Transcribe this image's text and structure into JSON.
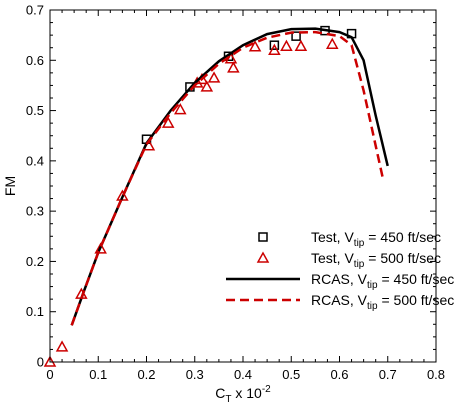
{
  "chart_data": {
    "type": "scatter",
    "title": "",
    "xlabel": "C",
    "xlabel_sub": "T",
    "xlabel_rest": " x 10",
    "xlabel_sup": "-2",
    "ylabel": "FM",
    "xlim": [
      0,
      0.8
    ],
    "ylim": [
      0,
      0.7
    ],
    "x_ticks": [
      "0",
      "0.1",
      "0.2",
      "0.3",
      "0.4",
      "0.5",
      "0.6",
      "0.7",
      "0.8"
    ],
    "y_ticks": [
      "0",
      "0.1",
      "0.2",
      "0.3",
      "0.4",
      "0.5",
      "0.6",
      "0.7"
    ],
    "grid": false,
    "legend_position": "lower-right",
    "series": [
      {
        "type": "scatter",
        "marker": "square",
        "color": "#000000",
        "legend": {
          "pre": "Test, V",
          "sub": "tip",
          "post": " = 450 ft/sec"
        },
        "points": [
          [
            0.2,
            0.443
          ],
          [
            0.29,
            0.547
          ],
          [
            0.37,
            0.608
          ],
          [
            0.465,
            0.63
          ],
          [
            0.51,
            0.648
          ],
          [
            0.57,
            0.659
          ],
          [
            0.625,
            0.653
          ]
        ]
      },
      {
        "type": "scatter",
        "marker": "triangle",
        "color": "#cc0000",
        "legend": {
          "pre": "Test, V",
          "sub": "tip",
          "post": " = 500 ft/sec"
        },
        "points": [
          [
            0.0,
            0.0
          ],
          [
            0.025,
            0.03
          ],
          [
            0.065,
            0.135
          ],
          [
            0.105,
            0.225
          ],
          [
            0.15,
            0.33
          ],
          [
            0.205,
            0.43
          ],
          [
            0.245,
            0.475
          ],
          [
            0.27,
            0.502
          ],
          [
            0.305,
            0.555
          ],
          [
            0.315,
            0.562
          ],
          [
            0.325,
            0.547
          ],
          [
            0.34,
            0.565
          ],
          [
            0.375,
            0.603
          ],
          [
            0.38,
            0.585
          ],
          [
            0.425,
            0.627
          ],
          [
            0.465,
            0.62
          ],
          [
            0.49,
            0.628
          ],
          [
            0.52,
            0.628
          ],
          [
            0.585,
            0.632
          ]
        ]
      },
      {
        "type": "line",
        "style": "solid",
        "color": "#000000",
        "legend": {
          "pre": "RCAS, V",
          "sub": "tip",
          "post": " = 450 ft/sec"
        },
        "points": [
          [
            0.045,
            0.073
          ],
          [
            0.07,
            0.14
          ],
          [
            0.1,
            0.218
          ],
          [
            0.15,
            0.328
          ],
          [
            0.2,
            0.435
          ],
          [
            0.25,
            0.5
          ],
          [
            0.3,
            0.555
          ],
          [
            0.35,
            0.598
          ],
          [
            0.4,
            0.63
          ],
          [
            0.45,
            0.652
          ],
          [
            0.5,
            0.662
          ],
          [
            0.55,
            0.663
          ],
          [
            0.6,
            0.656
          ],
          [
            0.625,
            0.646
          ],
          [
            0.65,
            0.6
          ],
          [
            0.675,
            0.49
          ],
          [
            0.7,
            0.39
          ]
        ]
      },
      {
        "type": "line",
        "style": "dashed",
        "color": "#cc0000",
        "legend": {
          "pre": "RCAS, V",
          "sub": "tip",
          "post": " = 500 ft/sec"
        },
        "points": [
          [
            0.045,
            0.073
          ],
          [
            0.07,
            0.14
          ],
          [
            0.1,
            0.218
          ],
          [
            0.15,
            0.328
          ],
          [
            0.2,
            0.433
          ],
          [
            0.25,
            0.495
          ],
          [
            0.3,
            0.55
          ],
          [
            0.35,
            0.593
          ],
          [
            0.4,
            0.625
          ],
          [
            0.45,
            0.645
          ],
          [
            0.5,
            0.655
          ],
          [
            0.55,
            0.656
          ],
          [
            0.6,
            0.648
          ],
          [
            0.625,
            0.63
          ],
          [
            0.65,
            0.54
          ],
          [
            0.675,
            0.43
          ],
          [
            0.69,
            0.365
          ]
        ]
      }
    ]
  }
}
